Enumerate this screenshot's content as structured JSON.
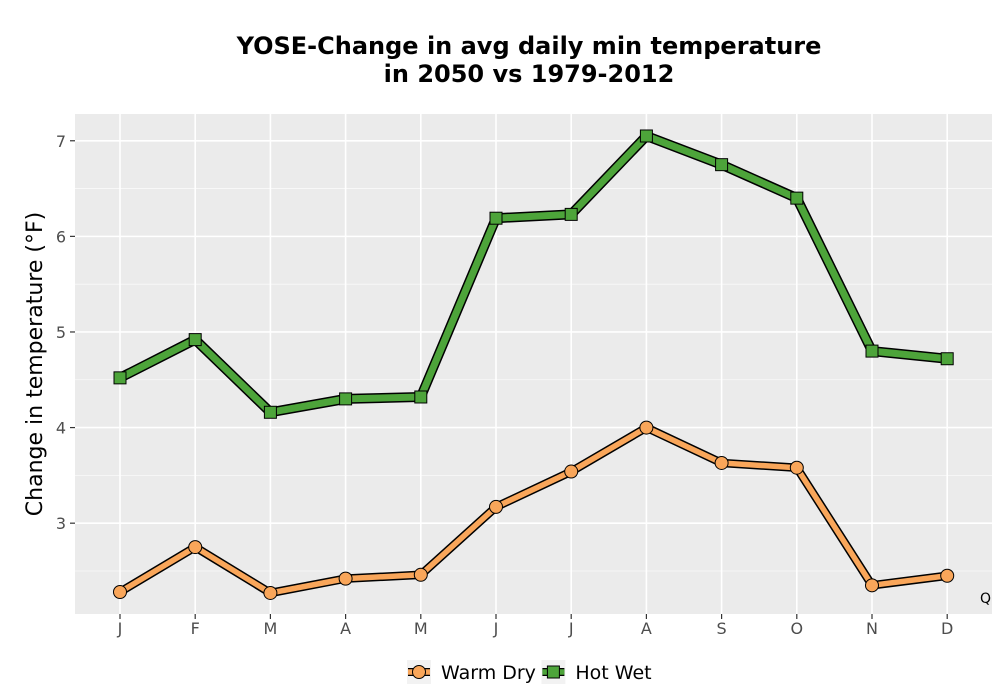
{
  "chart_data": {
    "type": "line",
    "title_lines": [
      "YOSE-Change in avg daily min temperature",
      "in 2050 vs 1979-2012"
    ],
    "xlabel": "",
    "ylabel": "Change in temperature (°F)",
    "categories": [
      "J",
      "F",
      "M",
      "A",
      "M",
      "J",
      "J",
      "A",
      "S",
      "O",
      "N",
      "D"
    ],
    "ylim": [
      2.05,
      7.28
    ],
    "yticks": [
      3,
      4,
      5,
      6,
      7
    ],
    "grid": true,
    "legend_position": "bottom",
    "series": [
      {
        "name": "Warm Dry",
        "marker": "circle",
        "color": "#F9A65A",
        "values": [
          2.28,
          2.75,
          2.27,
          2.42,
          2.46,
          3.17,
          3.54,
          4.0,
          3.63,
          3.58,
          2.35,
          2.45
        ]
      },
      {
        "name": "Hot Wet",
        "marker": "square",
        "color": "#4DA43A",
        "values": [
          4.52,
          4.92,
          4.16,
          4.3,
          4.32,
          6.19,
          6.23,
          7.05,
          6.75,
          6.4,
          4.8,
          4.72
        ]
      }
    ],
    "annotation": "Q"
  },
  "colors": {
    "panel_bg": "#EBEBEB",
    "grid_major": "#FFFFFF",
    "grid_minor": "#F5F5F5",
    "axis_text": "#4D4D4D"
  }
}
